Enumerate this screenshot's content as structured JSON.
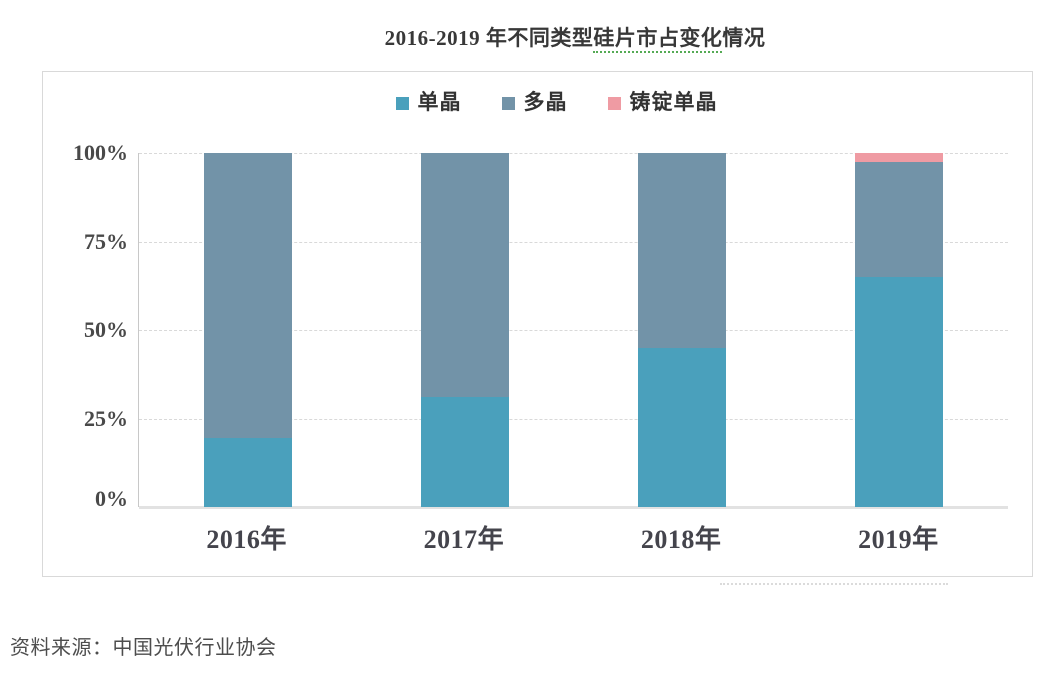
{
  "title": {
    "prefix": "2016-2019 年不同类型",
    "underlined": "硅片市占变化",
    "suffix": "情况",
    "text_color": "#383838",
    "squiggle_color": "#55aa55"
  },
  "chart_data": {
    "type": "bar",
    "stacked": true,
    "categories": [
      "2016年",
      "2017年",
      "2018年",
      "2019年"
    ],
    "series": [
      {
        "name": "单晶",
        "color": "#4aa0bc",
        "values": [
          19.5,
          31,
          45,
          65
        ]
      },
      {
        "name": "多晶",
        "color": "#7293a8",
        "values": [
          80.5,
          69,
          55,
          32.5
        ]
      },
      {
        "name": "铸锭单晶",
        "color": "#ef9ba3",
        "values": [
          0,
          0,
          0,
          2.5
        ]
      }
    ],
    "title": "2016-2019 年不同类型硅片市占变化情况",
    "xlabel": "",
    "ylabel": "",
    "ylim": [
      0,
      100
    ],
    "yticks": [
      {
        "label": "0%",
        "value": 0
      },
      {
        "label": "25%",
        "value": 25
      },
      {
        "label": "50%",
        "value": 50
      },
      {
        "label": "75%",
        "value": 75
      },
      {
        "label": "100%",
        "value": 100
      }
    ],
    "grid": "dashed-horizontal",
    "legend_position": "top-center",
    "colors": {
      "gridline": "#d9d9d9",
      "axis_line": "#c8c8c8",
      "baseline": "#e2e2e2",
      "panel_border": "#d9d9d9"
    }
  },
  "source": "资料来源：中国光伏行业协会"
}
